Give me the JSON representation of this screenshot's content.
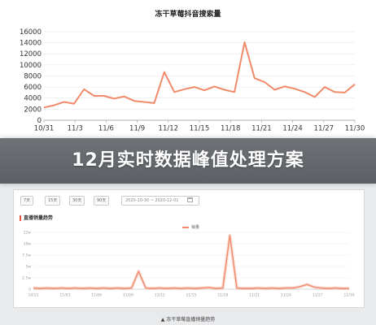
{
  "banner": {
    "title": "12月实时数据峰值处理方案"
  },
  "top_chart": {
    "title": "冻干草莓抖音搜索量",
    "chart_data": {
      "type": "line",
      "title": "冻干草莓抖音搜索量",
      "y_ticks": [
        "0",
        "2000",
        "4000",
        "6000",
        "8000",
        "10000",
        "12000",
        "14000",
        "16000"
      ],
      "x_tick_labels": [
        "10/31",
        "11/3",
        "11/6",
        "11/9",
        "11/12",
        "11/15",
        "11/18",
        "11/21",
        "11/24",
        "11/27",
        "11/30"
      ],
      "ylim": [
        0,
        16000
      ],
      "grid": true,
      "color": "#f08a6a",
      "series": [
        {
          "values": [
            2300,
            2700,
            3300,
            3000,
            5600,
            4400,
            4400,
            3900,
            4300,
            3500,
            3300,
            3100,
            8700,
            5100,
            5600,
            6000,
            5400,
            6100,
            5500,
            5100,
            14100,
            7600,
            6900,
            5500,
            6100,
            5700,
            5100,
            4200,
            6000,
            5100,
            5000,
            6500
          ]
        }
      ]
    }
  },
  "bottom_panel": {
    "tabs": [
      "7天",
      "15天",
      "30天",
      "90天"
    ],
    "date_range": "2020-10-30 ~ 2020-12-01",
    "title": "直播销量趋势",
    "legend": "销量",
    "chart_data": {
      "type": "line",
      "title": "直播销量趋势",
      "y_ticks": [
        "0",
        "2.5w",
        "5w",
        "7.5w",
        "10w",
        "12w"
      ],
      "x_tick_labels": [
        "10/31",
        "11/03",
        "11/06",
        "11/09",
        "11/12",
        "11/15",
        "11/18",
        "11/21",
        "11/24",
        "11/27",
        "11/30"
      ],
      "ylim": [
        0,
        13
      ],
      "color": "#f08a6a",
      "series": [
        {
          "name": "销量",
          "values": [
            0.3,
            0.2,
            0.3,
            0.2,
            0.3,
            0.2,
            0.3,
            0.2,
            0.3,
            0.2,
            0.3,
            0.2,
            0.3,
            0.2,
            0.3,
            4.1,
            0.3,
            0.2,
            0.3,
            0.2,
            0.3,
            0.2,
            0.3,
            0.2,
            0.3,
            0.4,
            0.2,
            0.3,
            12.3,
            0.3,
            0.2,
            0.2,
            0.3,
            0.2,
            0.3,
            0.2,
            0.3,
            0.3,
            0.6,
            1.1,
            0.5,
            0.3,
            0.2,
            0.3,
            0.2,
            0.2
          ]
        }
      ]
    }
  },
  "caption": "▲ 冻干草莓直播销量趋势"
}
